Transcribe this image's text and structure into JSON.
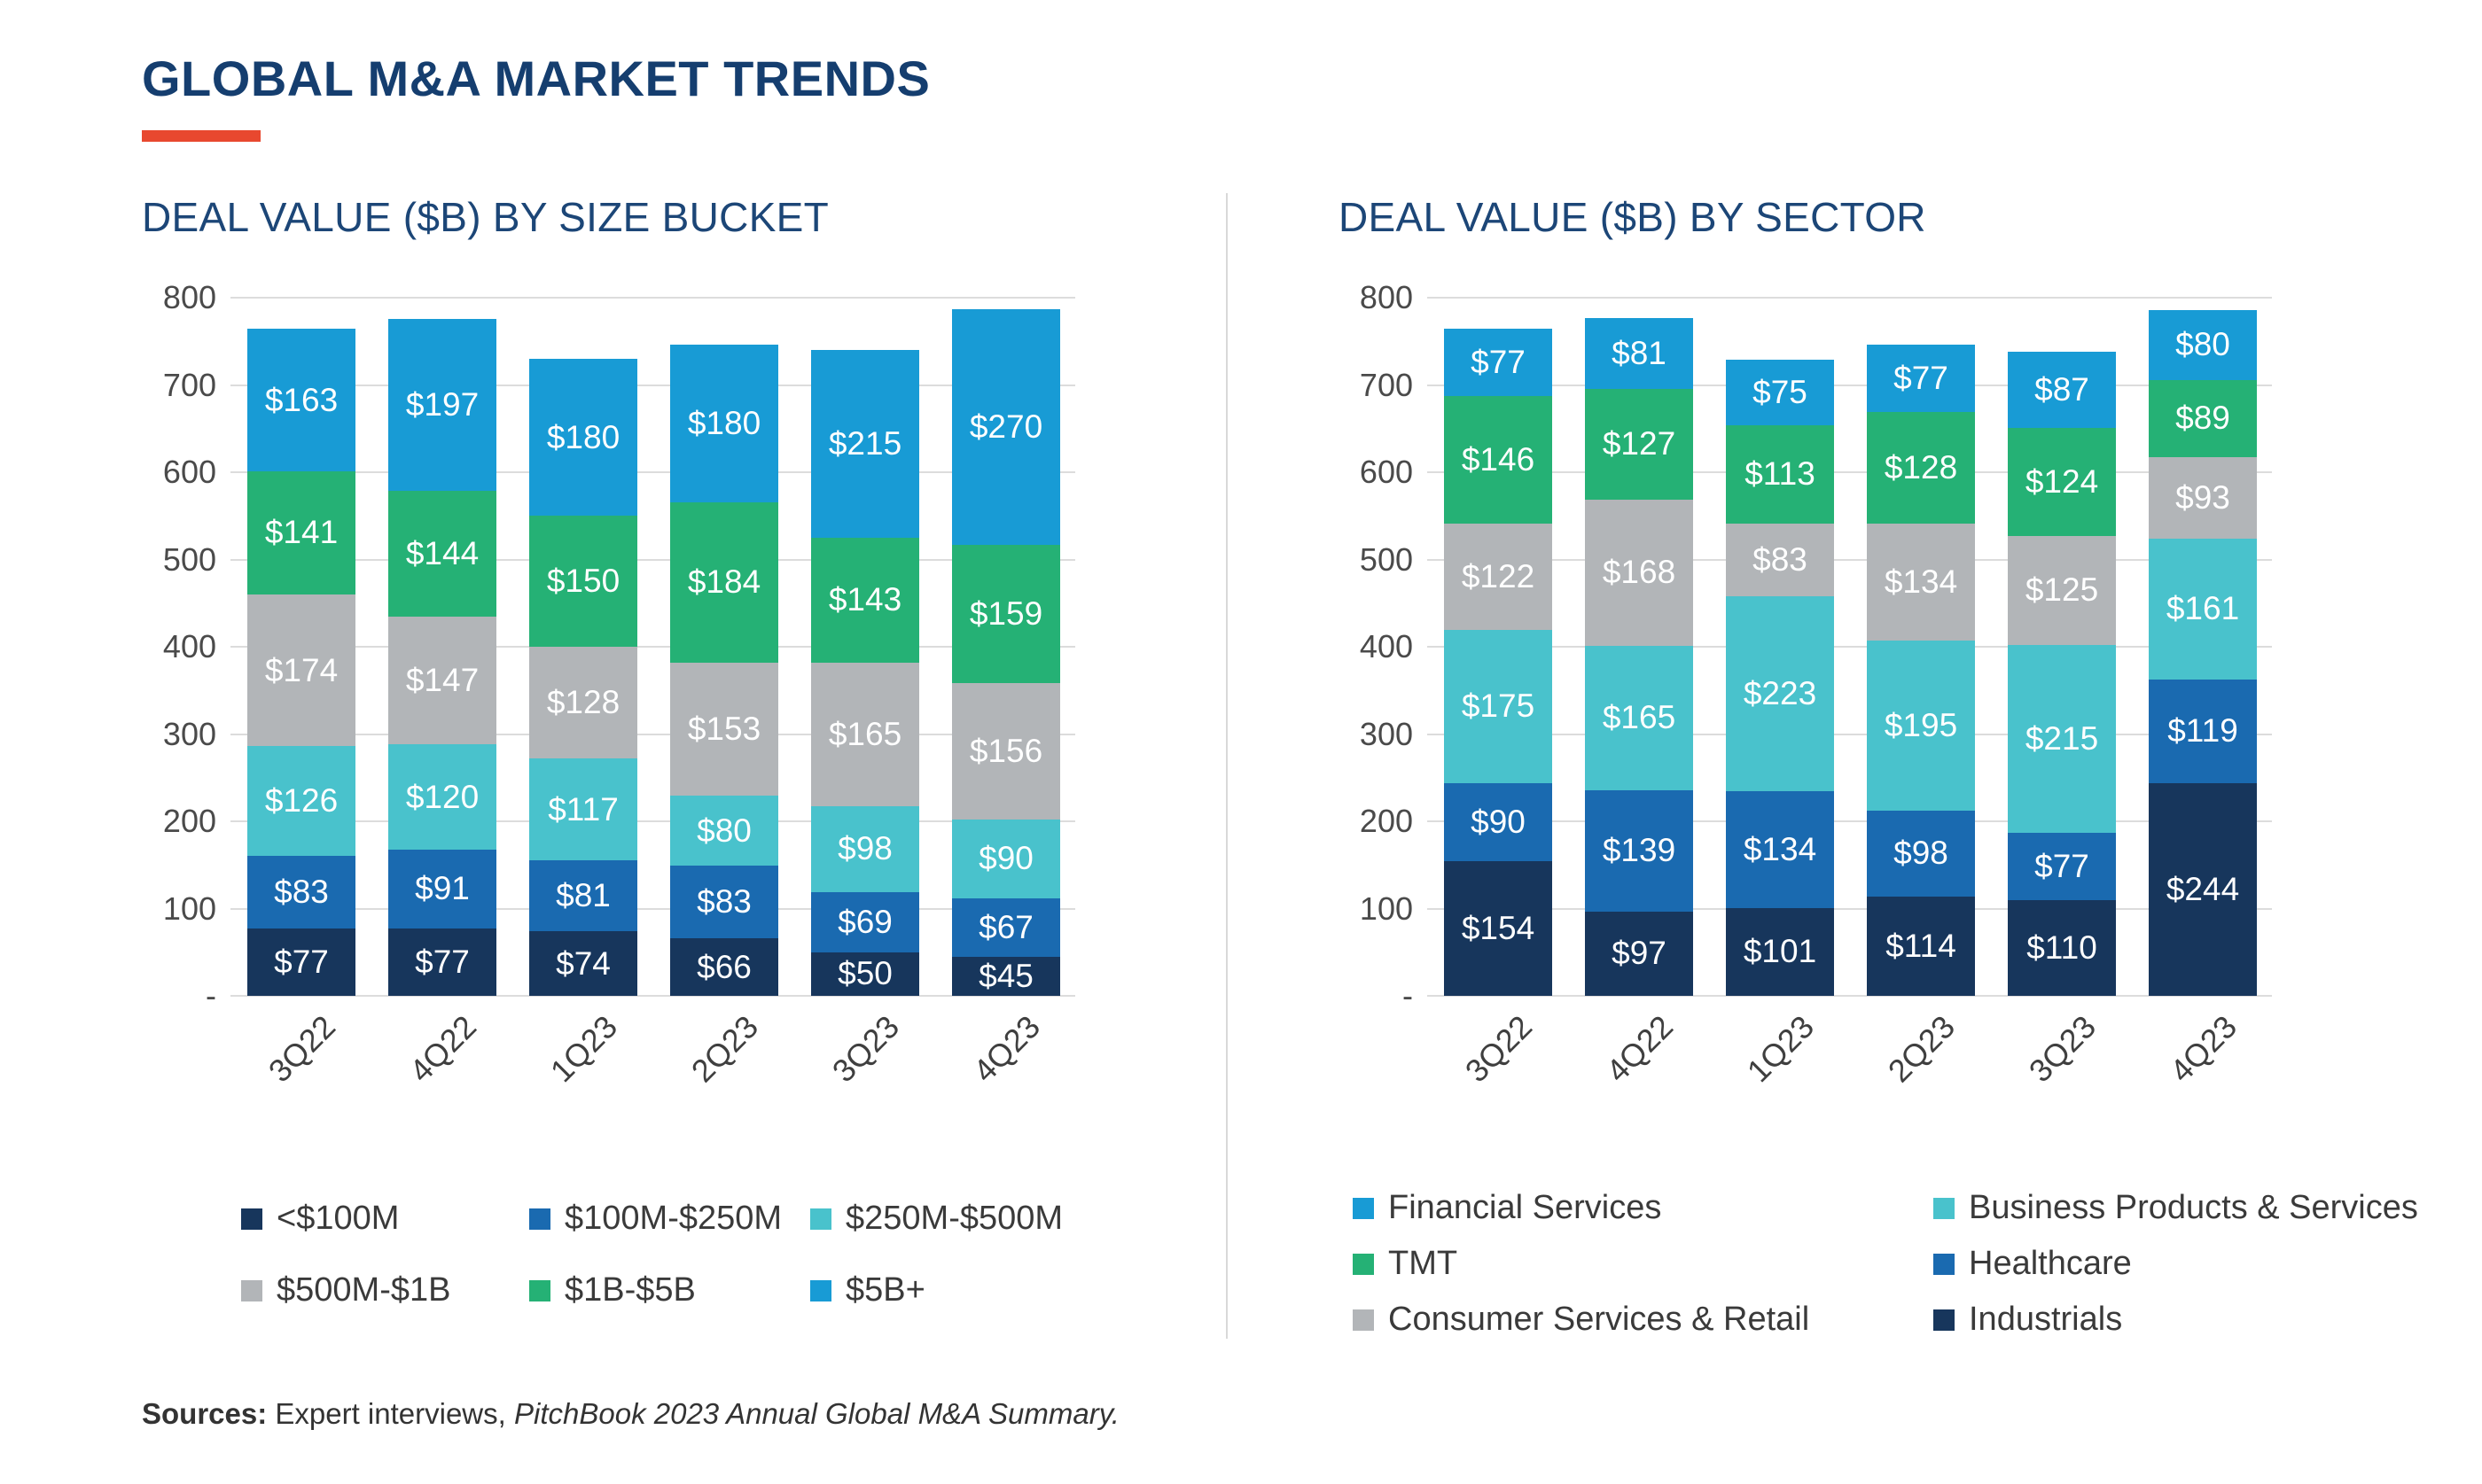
{
  "page": {
    "title": "GLOBAL M&A MARKET TRENDS",
    "accent_color": "#e8482f",
    "title_color": "#153e6f",
    "source": {
      "label": "Sources:",
      "text": " Expert interviews, ",
      "citation": "PitchBook 2023 Annual Global M&A Summary."
    }
  },
  "chart_data": [
    {
      "type": "bar",
      "stacked": true,
      "title": "DEAL VALUE ($B) BY SIZE BUCKET",
      "xlabel": "",
      "ylabel": "",
      "ylim": [
        0,
        800
      ],
      "yticks": [
        800,
        700,
        600,
        500,
        400,
        300,
        200,
        100,
        0
      ],
      "zero_tick_label": "-",
      "value_prefix": "$",
      "grid": true,
      "categories": [
        "3Q22",
        "4Q22",
        "1Q23",
        "2Q23",
        "3Q23",
        "4Q23"
      ],
      "series": [
        {
          "name": "<$100M",
          "color": "#17365c",
          "values": [
            77,
            77,
            74,
            66,
            50,
            45
          ]
        },
        {
          "name": "$100M-$250M",
          "color": "#1a6ab0",
          "values": [
            83,
            91,
            81,
            83,
            69,
            67
          ]
        },
        {
          "name": "$250M-$500M",
          "color": "#49c2cc",
          "values": [
            126,
            120,
            117,
            80,
            98,
            90
          ]
        },
        {
          "name": "$500M-$1B",
          "color": "#b2b5b8",
          "values": [
            174,
            147,
            128,
            153,
            165,
            156
          ]
        },
        {
          "name": "$1B-$5B",
          "color": "#25b175",
          "values": [
            141,
            144,
            150,
            184,
            143,
            159
          ]
        },
        {
          "name": "$5B+",
          "color": "#189bd5",
          "values": [
            163,
            197,
            180,
            180,
            215,
            270
          ]
        }
      ],
      "legend": {
        "position": "bottom",
        "columns": 3,
        "order": [
          "<$100M",
          "$100M-$250M",
          "$250M-$500M",
          "$500M-$1B",
          "$1B-$5B",
          "$5B+"
        ]
      }
    },
    {
      "type": "bar",
      "stacked": true,
      "title": "DEAL VALUE ($B) BY SECTOR",
      "xlabel": "",
      "ylabel": "",
      "ylim": [
        0,
        800
      ],
      "yticks": [
        800,
        700,
        600,
        500,
        400,
        300,
        200,
        100,
        0
      ],
      "zero_tick_label": "-",
      "value_prefix": "$",
      "grid": true,
      "categories": [
        "3Q22",
        "4Q22",
        "1Q23",
        "2Q23",
        "3Q23",
        "4Q23"
      ],
      "series": [
        {
          "name": "Industrials",
          "color": "#17365c",
          "values": [
            154,
            97,
            101,
            114,
            110,
            244
          ]
        },
        {
          "name": "Healthcare",
          "color": "#1a6ab0",
          "values": [
            90,
            139,
            134,
            98,
            77,
            119
          ]
        },
        {
          "name": "Business Products & Services",
          "color": "#49c2cc",
          "values": [
            175,
            165,
            223,
            195,
            215,
            161
          ]
        },
        {
          "name": "Consumer Services & Retail",
          "color": "#b2b5b8",
          "values": [
            122,
            168,
            83,
            134,
            125,
            93
          ]
        },
        {
          "name": "TMT",
          "color": "#25b175",
          "values": [
            146,
            127,
            113,
            128,
            124,
            89
          ]
        },
        {
          "name": "Financial Services",
          "color": "#189bd5",
          "values": [
            77,
            81,
            75,
            77,
            87,
            80
          ]
        }
      ],
      "legend": {
        "position": "bottom",
        "columns": 2,
        "order": [
          "Financial Services",
          "Business Products & Services",
          "TMT",
          "Healthcare",
          "Consumer Services & Retail",
          "Industrials"
        ]
      }
    }
  ]
}
